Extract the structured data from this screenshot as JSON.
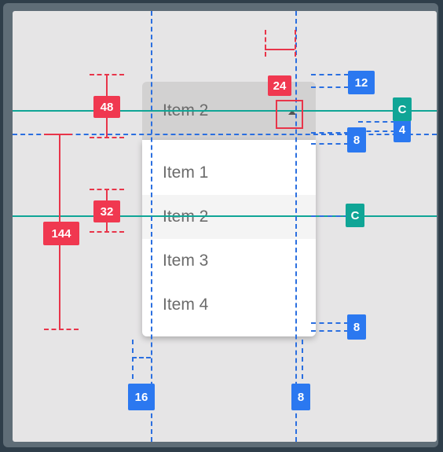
{
  "dropdown": {
    "selected": "Item 2",
    "items": [
      "Item 1",
      "Item 2",
      "Item 3",
      "Item 4"
    ],
    "highlighted_index": 1
  },
  "annotations": {
    "red": [
      "48",
      "32",
      "144",
      "24"
    ],
    "blue": [
      "12",
      "8",
      "4",
      "8",
      "16",
      "8"
    ],
    "teal": [
      "C",
      "C"
    ]
  },
  "colors": {
    "measure_red": "#f03850",
    "spacing_blue": "#2b78f0",
    "center_teal": "#10a596"
  }
}
